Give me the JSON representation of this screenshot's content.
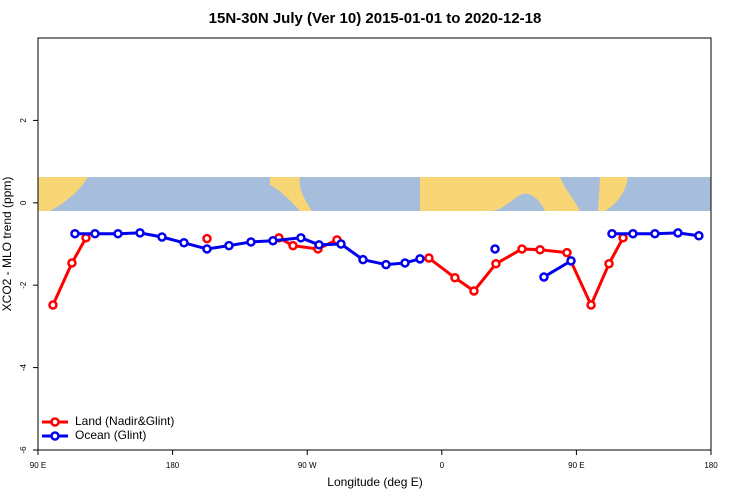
{
  "chart_data": {
    "type": "line",
    "title": "15N-30N July (Ver 10)   2015-01-01 to 2020-12-18",
    "x_label": "Longitude (deg E)",
    "y_label": "XCO2 - MLO trend (ppm)",
    "xlim": [
      90,
      540
    ],
    "xticks": [
      {
        "value": 90,
        "label": "90 E"
      },
      180,
      {
        "value": 270,
        "label": "90 W"
      },
      {
        "value": 360,
        "label": "0"
      },
      {
        "value": 450,
        "label": "90 E"
      },
      {
        "value": 540,
        "label": "180"
      }
    ],
    "ylim": [
      -6,
      4
    ],
    "yticks": [
      -6,
      -4,
      -2,
      0,
      2
    ],
    "legend": "bottom-left",
    "series": [
      {
        "name": "Land (Nadir&Glint)",
        "color": "#ff0000",
        "x": [
          100.0,
          112.7,
          122.1,
          150,
          203.0,
          225,
          251.1,
          260.5,
          277.2,
          289.9,
          330,
          351.4,
          368.8,
          381.5,
          396.2,
          413.6,
          425.7,
          443.7,
          459.8,
          471.8,
          481.2
        ],
        "values": [
          -2.48,
          -1.46,
          -0.85,
          null,
          -0.87,
          null,
          -0.85,
          -1.04,
          -1.12,
          -0.9,
          null,
          -1.34,
          -1.82,
          -2.14,
          -1.48,
          -1.12,
          -1.14,
          -1.21,
          -2.48,
          -1.48,
          -0.85
        ]
      },
      {
        "name": "Ocean (Glint)",
        "color": "#0000ee",
        "x": [
          114.7,
          128.1,
          143.5,
          158.2,
          172.9,
          187.6,
          203.0,
          217.7,
          232.4,
          247.1,
          265.8,
          277.9,
          292.6,
          307.3,
          322.7,
          335.4,
          345.4,
          370,
          395.6,
          410,
          428.3,
          446.4,
          460,
          473.8,
          487.8,
          502.5,
          517.9,
          531.9
        ],
        "values": [
          -0.75,
          -0.75,
          -0.75,
          -0.73,
          -0.83,
          -0.97,
          -1.12,
          -1.04,
          -0.95,
          -0.92,
          -0.85,
          -1.02,
          -1.0,
          -1.38,
          -1.5,
          -1.46,
          -1.36,
          null,
          -1.12,
          null,
          -1.8,
          -1.41,
          null,
          -0.75,
          -0.75,
          -0.75,
          -0.73,
          -0.8
        ]
      }
    ]
  }
}
